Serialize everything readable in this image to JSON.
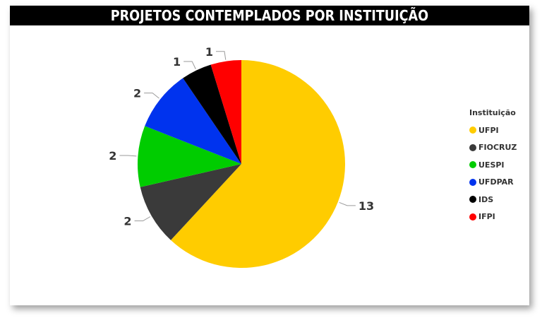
{
  "title": "PROJETOS CONTEMPLADOS POR INSTITUIÇÃO",
  "chart_data": {
    "type": "pie",
    "legend_title": "Instituição",
    "legend_position": "right",
    "slices": [
      {
        "label": "UFPI",
        "value": 13,
        "value_label": "13",
        "color": "#FFCC00"
      },
      {
        "label": "FIOCRUZ",
        "value": 2,
        "value_label": "2",
        "color": "#3A3A3A"
      },
      {
        "label": "UESPI",
        "value": 2,
        "value_label": "2",
        "color": "#00CC00"
      },
      {
        "label": "UFDPAR",
        "value": 2,
        "value_label": "2",
        "color": "#0033EE"
      },
      {
        "label": "IDS",
        "value": 1,
        "value_label": "1",
        "color": "#000000"
      },
      {
        "label": "IFPI",
        "value": 1,
        "value_label": "1",
        "color": "#FF0000"
      }
    ]
  }
}
